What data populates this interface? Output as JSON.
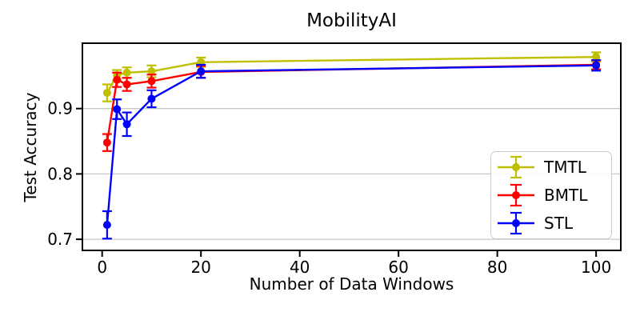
{
  "chart_data": {
    "type": "line",
    "title": "MobilityAI",
    "xlabel": "Number of Data Windows",
    "ylabel": "Test Accuracy",
    "x": [
      1,
      3,
      5,
      10,
      20,
      100
    ],
    "series": [
      {
        "name": "TMTL",
        "color": "#bfbf00",
        "values": [
          0.924,
          0.951,
          0.955,
          0.957,
          0.971,
          0.979
        ],
        "yerr": [
          0.013,
          0.008,
          0.008,
          0.009,
          0.007,
          0.007
        ]
      },
      {
        "name": "BMTL",
        "color": "#ff0000",
        "values": [
          0.848,
          0.944,
          0.937,
          0.942,
          0.956,
          0.967
        ],
        "yerr": [
          0.013,
          0.011,
          0.01,
          0.01,
          0.009,
          0.007
        ]
      },
      {
        "name": "STL",
        "color": "#0000ff",
        "values": [
          0.722,
          0.899,
          0.876,
          0.915,
          0.957,
          0.966
        ],
        "yerr": [
          0.021,
          0.015,
          0.018,
          0.013,
          0.01,
          0.008
        ]
      }
    ],
    "xlim": [
      -4,
      105
    ],
    "ylim": [
      0.683,
      1.0
    ],
    "x_ticks": [
      0,
      20,
      40,
      60,
      80,
      100
    ],
    "x_tick_labels": [
      "0",
      "20",
      "40",
      "60",
      "80",
      "100"
    ],
    "y_ticks": [
      0.7,
      0.8,
      0.9
    ],
    "y_tick_labels": [
      "0.7",
      "0.8",
      "0.9"
    ],
    "grid": "horizontal-only",
    "legend_position": "lower right",
    "colors": {
      "grid": "#c8c8c8",
      "axis": "#000000",
      "text": "#000000",
      "background": "#ffffff"
    }
  }
}
